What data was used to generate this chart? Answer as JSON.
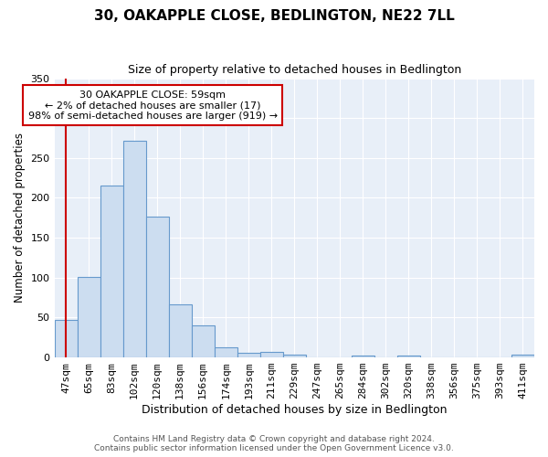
{
  "title": "30, OAKAPPLE CLOSE, BEDLINGTON, NE22 7LL",
  "subtitle": "Size of property relative to detached houses in Bedlington",
  "xlabel": "Distribution of detached houses by size in Bedlington",
  "ylabel": "Number of detached properties",
  "categories": [
    "47sqm",
    "65sqm",
    "83sqm",
    "102sqm",
    "120sqm",
    "138sqm",
    "156sqm",
    "174sqm",
    "193sqm",
    "211sqm",
    "229sqm",
    "247sqm",
    "265sqm",
    "284sqm",
    "302sqm",
    "320sqm",
    "338sqm",
    "356sqm",
    "375sqm",
    "393sqm",
    "411sqm"
  ],
  "values": [
    47,
    101,
    215,
    272,
    176,
    66,
    40,
    13,
    6,
    7,
    4,
    0,
    0,
    2,
    0,
    2,
    0,
    0,
    0,
    0,
    3
  ],
  "bar_color": "#ccddf0",
  "bar_edge_color": "#6699cc",
  "annotation_text": "30 OAKAPPLE CLOSE: 59sqm\n← 2% of detached houses are smaller (17)\n98% of semi-detached houses are larger (919) →",
  "annotation_box_color": "#ffffff",
  "annotation_border_color": "#cc0000",
  "ylim": [
    0,
    350
  ],
  "yticks": [
    0,
    50,
    100,
    150,
    200,
    250,
    300,
    350
  ],
  "background_color": "#e8eff8",
  "footer_line1": "Contains HM Land Registry data © Crown copyright and database right 2024.",
  "footer_line2": "Contains public sector information licensed under the Open Government Licence v3.0."
}
